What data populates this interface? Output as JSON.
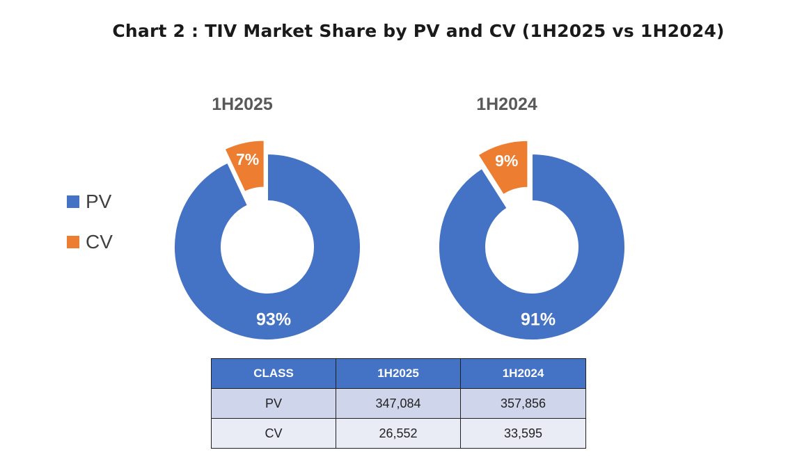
{
  "title": "Chart 2 : TIV Market Share by PV and CV (1H2025 vs 1H2024)",
  "legend": [
    {
      "label": "PV",
      "color": "#4472c4"
    },
    {
      "label": "CV",
      "color": "#ed7d31"
    }
  ],
  "chart_data": [
    {
      "type": "pie",
      "variant": "donut",
      "title": "1H2025",
      "labels": [
        "PV",
        "CV"
      ],
      "values": [
        93,
        7
      ],
      "value_labels": [
        "93%",
        "7%"
      ],
      "colors": [
        "#4472c4",
        "#ed7d31"
      ],
      "exploded": [
        "CV"
      ]
    },
    {
      "type": "pie",
      "variant": "donut",
      "title": "1H2024",
      "labels": [
        "PV",
        "CV"
      ],
      "values": [
        91,
        9
      ],
      "value_labels": [
        "91%",
        "9%"
      ],
      "colors": [
        "#4472c4",
        "#ed7d31"
      ],
      "exploded": [
        "CV"
      ]
    }
  ],
  "table": {
    "headers": [
      "CLASS",
      "1H2025",
      "1H2024"
    ],
    "rows": [
      [
        "PV",
        "347,084",
        "357,856"
      ],
      [
        "CV",
        "26,552",
        "33,595"
      ]
    ]
  }
}
